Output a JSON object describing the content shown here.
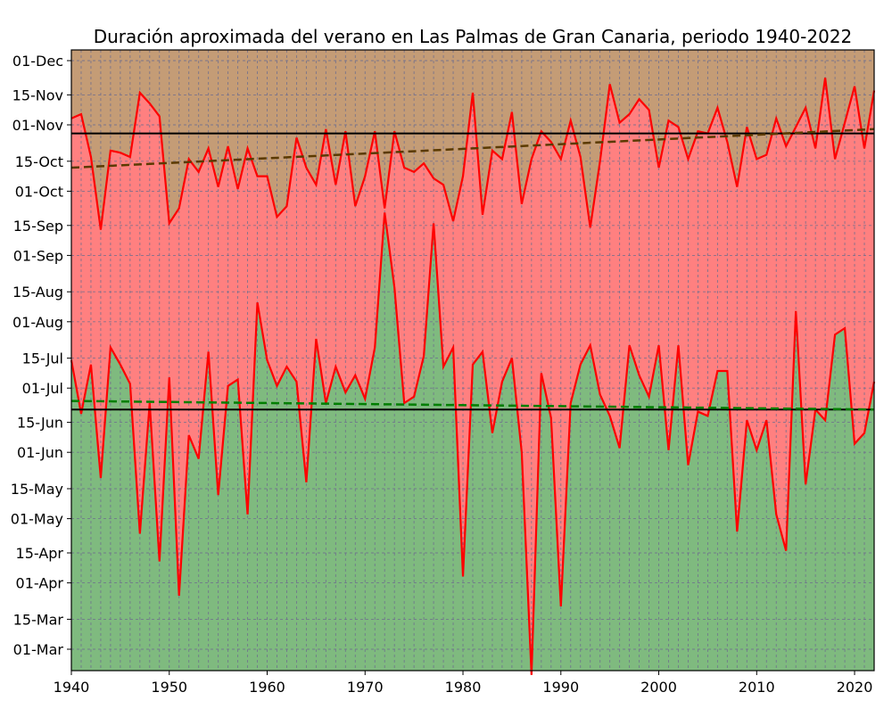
{
  "chart_data": {
    "type": "area",
    "title": "Duración aproximada del verano en Las Palmas de Gran Canaria, periodo 1940-2022",
    "xlabel": "",
    "ylabel": "",
    "xlim": [
      1940,
      2022
    ],
    "ylim": [
      50,
      340
    ],
    "x_ticks": [
      1940,
      1950,
      1960,
      1970,
      1980,
      1990,
      2000,
      2010,
      2020
    ],
    "y_ticks": [
      {
        "label": "01-Mar",
        "value": 60
      },
      {
        "label": "15-Mar",
        "value": 74
      },
      {
        "label": "01-Apr",
        "value": 91
      },
      {
        "label": "15-Apr",
        "value": 105
      },
      {
        "label": "01-May",
        "value": 121
      },
      {
        "label": "15-May",
        "value": 135
      },
      {
        "label": "01-Jun",
        "value": 152
      },
      {
        "label": "15-Jun",
        "value": 166
      },
      {
        "label": "01-Jul",
        "value": 182
      },
      {
        "label": "15-Jul",
        "value": 196
      },
      {
        "label": "01-Aug",
        "value": 213
      },
      {
        "label": "15-Aug",
        "value": 227
      },
      {
        "label": "01-Sep",
        "value": 244
      },
      {
        "label": "15-Sep",
        "value": 258
      },
      {
        "label": "01-Oct",
        "value": 274
      },
      {
        "label": "15-Oct",
        "value": 288
      },
      {
        "label": "01-Nov",
        "value": 305
      },
      {
        "label": "15-Nov",
        "value": 319
      },
      {
        "label": "01-Dec",
        "value": 335
      }
    ],
    "years": [
      1940,
      1941,
      1942,
      1943,
      1944,
      1945,
      1946,
      1947,
      1948,
      1949,
      1950,
      1951,
      1952,
      1953,
      1954,
      1955,
      1956,
      1957,
      1958,
      1959,
      1960,
      1961,
      1962,
      1963,
      1964,
      1965,
      1966,
      1967,
      1968,
      1969,
      1970,
      1971,
      1972,
      1973,
      1974,
      1975,
      1976,
      1977,
      1978,
      1979,
      1980,
      1981,
      1982,
      1983,
      1984,
      1985,
      1986,
      1987,
      1988,
      1989,
      1990,
      1991,
      1992,
      1993,
      1994,
      1995,
      1996,
      1997,
      1998,
      1999,
      2000,
      2001,
      2002,
      2003,
      2004,
      2005,
      2006,
      2007,
      2008,
      2009,
      2010,
      2011,
      2012,
      2013,
      2014,
      2015,
      2016,
      2017,
      2018,
      2019,
      2020,
      2021,
      2022
    ],
    "series": [
      {
        "name": "start",
        "values": [
          195,
          170,
          193,
          140,
          201,
          193,
          184,
          114,
          175,
          101,
          187,
          85,
          160,
          149,
          199,
          132,
          183,
          186,
          123,
          222,
          195,
          183,
          192,
          185,
          138,
          205,
          175,
          192,
          180,
          188,
          177,
          201,
          264,
          229,
          175,
          178,
          197,
          259,
          192,
          201,
          94,
          193,
          199,
          161,
          185,
          196,
          152,
          48,
          189,
          168,
          80,
          175,
          193,
          202,
          179,
          169,
          154,
          202,
          188,
          178,
          202,
          153,
          202,
          146,
          171,
          169,
          190,
          190,
          115,
          167,
          153,
          167,
          123,
          106,
          218,
          137,
          172,
          167,
          207,
          210,
          156,
          161,
          185
        ]
      },
      {
        "name": "end",
        "values": [
          308,
          310,
          290,
          256,
          293,
          292,
          290,
          320,
          315,
          309,
          259,
          266,
          289,
          283,
          294,
          276,
          295,
          275,
          294,
          281,
          281,
          262,
          267,
          299,
          285,
          277,
          303,
          277,
          302,
          267,
          281,
          302,
          266,
          302,
          285,
          283,
          287,
          280,
          277,
          260,
          281,
          320,
          263,
          293,
          289,
          311,
          268,
          289,
          302,
          297,
          289,
          307,
          290,
          257,
          288,
          324,
          306,
          310,
          317,
          312,
          285,
          307,
          304,
          289,
          302,
          301,
          313,
          297,
          276,
          304,
          289,
          291,
          308,
          295,
          304,
          313,
          294,
          327,
          289,
          306,
          323,
          294,
          321
        ]
      }
    ],
    "mean_start": 172,
    "mean_end": 301,
    "trend_start": [
      176,
      172
    ],
    "trend_end": [
      285,
      303
    ],
    "colors": {
      "spring": "#7fba7f",
      "summer": "#ff8080",
      "autumn": "#c49c76",
      "series_line": "#ff0000",
      "trend_start": "#007f00",
      "trend_end": "#5b3a00",
      "mean_line": "#000000",
      "grid": "#6e6e8e"
    },
    "grid": true
  }
}
